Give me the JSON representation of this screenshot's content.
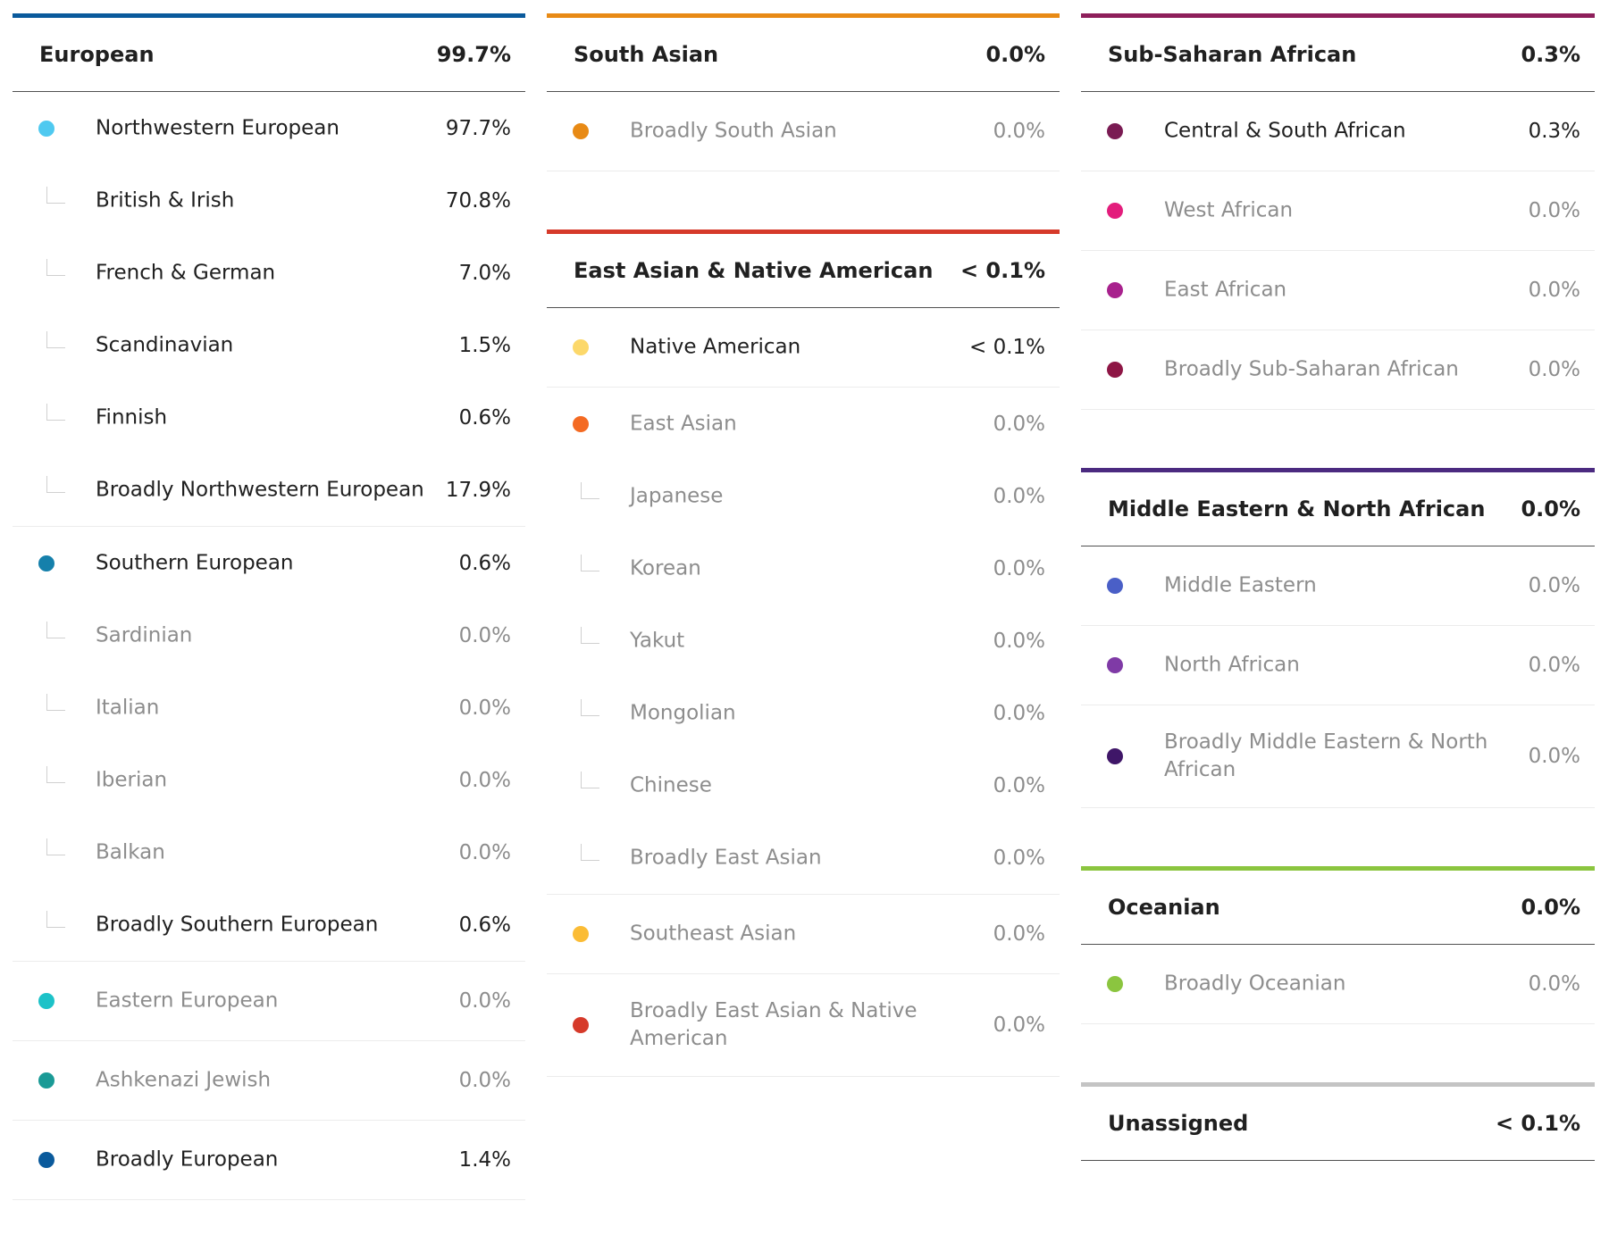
{
  "colors": {
    "european": "#0a5a9c",
    "south_asian": "#e88a15",
    "east_asian_native_american": "#d63a2a",
    "sub_saharan_african": "#8e1f5b",
    "middle_eastern_north_african": "#4b2a80",
    "oceanian": "#8bc53f",
    "unassigned": "#c4c4c4"
  },
  "european": {
    "name": "European",
    "pct": "99.7%",
    "nw": {
      "name": "Northwestern European",
      "pct": "97.7%",
      "dot": "#4fc9f0",
      "subs": [
        {
          "name": "British & Irish",
          "pct": "70.8%"
        },
        {
          "name": "French & German",
          "pct": "7.0%"
        },
        {
          "name": "Scandinavian",
          "pct": "1.5%"
        },
        {
          "name": "Finnish",
          "pct": "0.6%"
        },
        {
          "name": "Broadly Northwestern European",
          "pct": "17.9%"
        }
      ]
    },
    "southern": {
      "name": "Southern European",
      "pct": "0.6%",
      "dot": "#1580ab",
      "subs": [
        {
          "name": "Sardinian",
          "pct": "0.0%"
        },
        {
          "name": "Italian",
          "pct": "0.0%"
        },
        {
          "name": "Iberian",
          "pct": "0.0%"
        },
        {
          "name": "Balkan",
          "pct": "0.0%"
        },
        {
          "name": "Broadly Southern European",
          "pct": "0.6%"
        }
      ]
    },
    "eastern": {
      "name": "Eastern European",
      "pct": "0.0%",
      "dot": "#1cc2c8"
    },
    "ashkenazi": {
      "name": "Ashkenazi Jewish",
      "pct": "0.0%",
      "dot": "#1a9a96"
    },
    "broadly": {
      "name": "Broadly European",
      "pct": "1.4%",
      "dot": "#0a5a9c"
    }
  },
  "south_asian": {
    "name": "South Asian",
    "pct": "0.0%",
    "broadly": {
      "name": "Broadly South Asian",
      "pct": "0.0%",
      "dot": "#e88a15"
    }
  },
  "east_asian": {
    "name": "East Asian & Native American",
    "pct": "< 0.1%",
    "native": {
      "name": "Native American",
      "pct": "< 0.1%",
      "dot": "#fcd86a"
    },
    "east": {
      "name": "East Asian",
      "pct": "0.0%",
      "dot": "#f46a22",
      "subs": [
        {
          "name": "Japanese",
          "pct": "0.0%"
        },
        {
          "name": "Korean",
          "pct": "0.0%"
        },
        {
          "name": "Yakut",
          "pct": "0.0%"
        },
        {
          "name": "Mongolian",
          "pct": "0.0%"
        },
        {
          "name": "Chinese",
          "pct": "0.0%"
        },
        {
          "name": "Broadly East Asian",
          "pct": "0.0%"
        }
      ]
    },
    "southeast": {
      "name": "Southeast Asian",
      "pct": "0.0%",
      "dot": "#fbbc35"
    },
    "broadly": {
      "name": "Broadly East Asian & Native American",
      "pct": "0.0%",
      "dot": "#d63a2a"
    }
  },
  "sub_saharan": {
    "name": "Sub-Saharan African",
    "pct": "0.3%",
    "items": [
      {
        "name": "Central & South African",
        "pct": "0.3%",
        "dot": "#7a1b53"
      },
      {
        "name": "West African",
        "pct": "0.0%",
        "dot": "#e31d7c"
      },
      {
        "name": "East African",
        "pct": "0.0%",
        "dot": "#a8218d"
      },
      {
        "name": "Broadly Sub-Saharan African",
        "pct": "0.0%",
        "dot": "#8e1645"
      }
    ]
  },
  "mena": {
    "name": "Middle Eastern & North African",
    "pct": "0.0%",
    "items": [
      {
        "name": "Middle Eastern",
        "pct": "0.0%",
        "dot": "#4a5fc7"
      },
      {
        "name": "North African",
        "pct": "0.0%",
        "dot": "#7f3aa6"
      },
      {
        "name": "Broadly Middle Eastern & North African",
        "pct": "0.0%",
        "dot": "#3f1668"
      }
    ]
  },
  "oceanian": {
    "name": "Oceanian",
    "pct": "0.0%",
    "broadly": {
      "name": "Broadly Oceanian",
      "pct": "0.0%",
      "dot": "#8bc53f"
    }
  },
  "unassigned": {
    "name": "Unassigned",
    "pct": "< 0.1%"
  }
}
